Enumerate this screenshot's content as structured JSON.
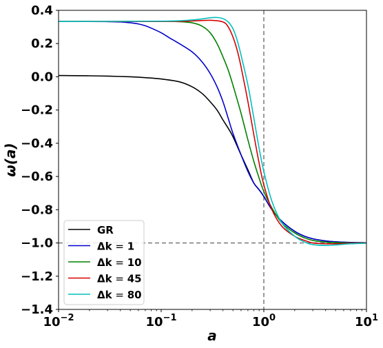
{
  "chart_data": {
    "type": "line",
    "xlabel": "a",
    "ylabel": "ω(a)",
    "xscale": "log",
    "xlim": [
      0.01,
      10
    ],
    "ylim": [
      -1.4,
      0.4
    ],
    "grid": false,
    "legend_position": "lower-left",
    "x_ticks": [
      {
        "value": 0.01,
        "base": "10",
        "exp": "−2"
      },
      {
        "value": 0.1,
        "base": "10",
        "exp": "−1"
      },
      {
        "value": 1,
        "base": "10",
        "exp": "0"
      },
      {
        "value": 10,
        "base": "10",
        "exp": "1"
      }
    ],
    "y_ticks": [
      {
        "value": 0.4,
        "label": "0.4"
      },
      {
        "value": 0.2,
        "label": "0.2"
      },
      {
        "value": 0.0,
        "label": "0.0"
      },
      {
        "value": -0.2,
        "label": "−0.2"
      },
      {
        "value": -0.4,
        "label": "−0.4"
      },
      {
        "value": -0.6,
        "label": "−0.6"
      },
      {
        "value": -0.8,
        "label": "−0.8"
      },
      {
        "value": -1.0,
        "label": "−1.0"
      },
      {
        "value": -1.2,
        "label": "−1.2"
      },
      {
        "value": -1.4,
        "label": "−1.4"
      }
    ],
    "reference_lines": [
      {
        "orientation": "vertical",
        "x": 1,
        "style": "dashed",
        "color": "#808080"
      },
      {
        "orientation": "horizontal",
        "y": -1,
        "style": "dashed",
        "color": "#808080"
      }
    ],
    "series": [
      {
        "name": "GR",
        "label_prefix": "GR",
        "label_value": "",
        "color": "#000000",
        "points": [
          [
            0.01,
            0.008
          ],
          [
            0.02,
            0.006
          ],
          [
            0.03,
            0.004
          ],
          [
            0.05,
            0.0
          ],
          [
            0.07,
            -0.005
          ],
          [
            0.1,
            -0.013
          ],
          [
            0.15,
            -0.03
          ],
          [
            0.2,
            -0.06
          ],
          [
            0.25,
            -0.1
          ],
          [
            0.3,
            -0.15
          ],
          [
            0.35,
            -0.2
          ],
          [
            0.4,
            -0.26
          ],
          [
            0.45,
            -0.31
          ],
          [
            0.5,
            -0.36
          ],
          [
            0.6,
            -0.47
          ],
          [
            0.7,
            -0.56
          ],
          [
            0.8,
            -0.64
          ],
          [
            0.9,
            -0.68
          ],
          [
            1.0,
            -0.72
          ],
          [
            1.2,
            -0.8
          ],
          [
            1.5,
            -0.87
          ],
          [
            2.0,
            -0.93
          ],
          [
            2.5,
            -0.96
          ],
          [
            3.0,
            -0.975
          ],
          [
            4.0,
            -0.988
          ],
          [
            5.0,
            -0.993
          ],
          [
            7.0,
            -0.997
          ],
          [
            10.0,
            -0.999
          ]
        ]
      },
      {
        "name": "Δk = 1",
        "label_prefix": "Δk",
        "label_value": "1",
        "color": "#0000cc",
        "points": [
          [
            0.01,
            0.333
          ],
          [
            0.02,
            0.333
          ],
          [
            0.03,
            0.332
          ],
          [
            0.04,
            0.33
          ],
          [
            0.05,
            0.325
          ],
          [
            0.06,
            0.318
          ],
          [
            0.07,
            0.307
          ],
          [
            0.08,
            0.293
          ],
          [
            0.1,
            0.265
          ],
          [
            0.12,
            0.235
          ],
          [
            0.15,
            0.2
          ],
          [
            0.2,
            0.15
          ],
          [
            0.25,
            0.09
          ],
          [
            0.3,
            0.02
          ],
          [
            0.35,
            -0.06
          ],
          [
            0.4,
            -0.15
          ],
          [
            0.45,
            -0.25
          ],
          [
            0.5,
            -0.34
          ],
          [
            0.6,
            -0.47
          ],
          [
            0.7,
            -0.57
          ],
          [
            0.8,
            -0.64
          ],
          [
            0.9,
            -0.68
          ],
          [
            1.0,
            -0.72
          ],
          [
            1.2,
            -0.8
          ],
          [
            1.5,
            -0.87
          ],
          [
            2.0,
            -0.93
          ],
          [
            2.5,
            -0.96
          ],
          [
            3.0,
            -0.975
          ],
          [
            4.0,
            -0.988
          ],
          [
            5.0,
            -0.993
          ],
          [
            7.0,
            -0.997
          ],
          [
            10.0,
            -0.999
          ]
        ]
      },
      {
        "name": "Δk = 10",
        "label_prefix": "Δk",
        "label_value": "10",
        "color": "#008000",
        "points": [
          [
            0.01,
            0.333
          ],
          [
            0.05,
            0.333
          ],
          [
            0.1,
            0.333
          ],
          [
            0.15,
            0.332
          ],
          [
            0.2,
            0.325
          ],
          [
            0.25,
            0.305
          ],
          [
            0.3,
            0.265
          ],
          [
            0.35,
            0.2
          ],
          [
            0.4,
            0.12
          ],
          [
            0.45,
            0.04
          ],
          [
            0.5,
            -0.05
          ],
          [
            0.6,
            -0.22
          ],
          [
            0.7,
            -0.38
          ],
          [
            0.8,
            -0.51
          ],
          [
            0.9,
            -0.61
          ],
          [
            1.0,
            -0.69
          ],
          [
            1.2,
            -0.79
          ],
          [
            1.5,
            -0.88
          ],
          [
            2.0,
            -0.94
          ],
          [
            2.5,
            -0.97
          ],
          [
            3.0,
            -0.985
          ],
          [
            4.0,
            -0.995
          ],
          [
            5.0,
            -0.998
          ],
          [
            7.0,
            -1.0
          ],
          [
            10.0,
            -1.0
          ]
        ]
      },
      {
        "name": "Δk = 45",
        "label_prefix": "Δk",
        "label_value": "45",
        "color": "#d40000",
        "points": [
          [
            0.01,
            0.333
          ],
          [
            0.1,
            0.333
          ],
          [
            0.2,
            0.336
          ],
          [
            0.3,
            0.34
          ],
          [
            0.4,
            0.33
          ],
          [
            0.45,
            0.3
          ],
          [
            0.5,
            0.24
          ],
          [
            0.55,
            0.16
          ],
          [
            0.6,
            0.06
          ],
          [
            0.7,
            -0.15
          ],
          [
            0.8,
            -0.35
          ],
          [
            0.9,
            -0.52
          ],
          [
            1.0,
            -0.65
          ],
          [
            1.2,
            -0.8
          ],
          [
            1.5,
            -0.9
          ],
          [
            2.0,
            -0.96
          ],
          [
            2.5,
            -0.985
          ],
          [
            3.0,
            -1.0
          ],
          [
            4.0,
            -1.005
          ],
          [
            5.0,
            -1.005
          ],
          [
            7.0,
            -1.002
          ],
          [
            10.0,
            -1.0
          ]
        ]
      },
      {
        "name": "Δk = 80",
        "label_prefix": "Δk",
        "label_value": "80",
        "color": "#00bfbf",
        "points": [
          [
            0.01,
            0.333
          ],
          [
            0.1,
            0.335
          ],
          [
            0.2,
            0.342
          ],
          [
            0.3,
            0.355
          ],
          [
            0.35,
            0.357
          ],
          [
            0.4,
            0.35
          ],
          [
            0.45,
            0.33
          ],
          [
            0.5,
            0.29
          ],
          [
            0.55,
            0.22
          ],
          [
            0.6,
            0.13
          ],
          [
            0.7,
            -0.05
          ],
          [
            0.8,
            -0.25
          ],
          [
            0.9,
            -0.43
          ],
          [
            1.0,
            -0.57
          ],
          [
            1.2,
            -0.75
          ],
          [
            1.5,
            -0.88
          ],
          [
            2.0,
            -0.96
          ],
          [
            2.5,
            -0.995
          ],
          [
            3.0,
            -1.01
          ],
          [
            4.0,
            -1.015
          ],
          [
            5.0,
            -1.012
          ],
          [
            7.0,
            -1.005
          ],
          [
            10.0,
            -1.002
          ]
        ]
      }
    ]
  }
}
